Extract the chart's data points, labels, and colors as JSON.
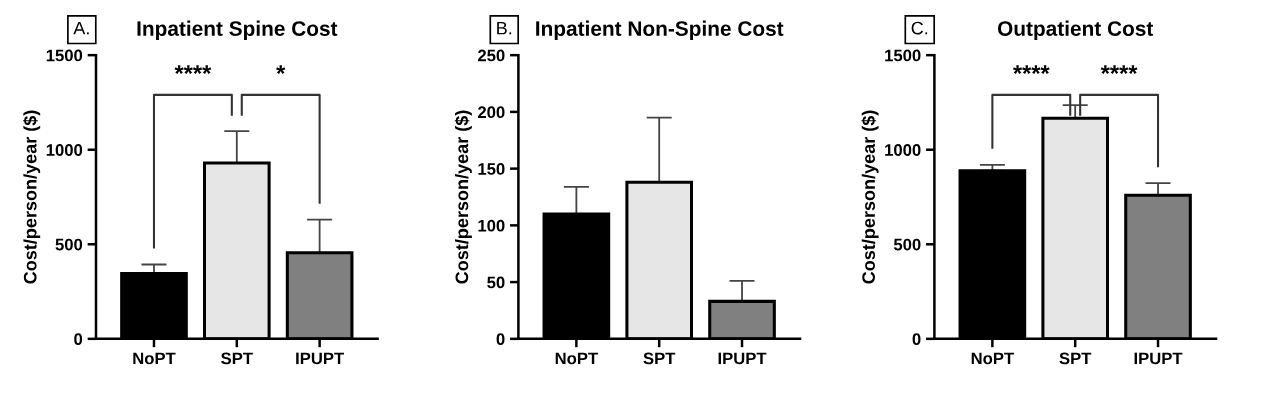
{
  "chart_data": [
    {
      "type": "bar",
      "title": "Inpatient Spine Cost",
      "ylabel": "Cost/person/year ($)",
      "categories": [
        "NoPT",
        "SPT",
        "IPUPT"
      ],
      "values": [
        345,
        930,
        455
      ],
      "errors": [
        [
          345,
          393
        ],
        [
          930,
          1098
        ],
        [
          455,
          630
        ]
      ],
      "colors": [
        "#000000",
        "#e6e6e6",
        "#808080"
      ],
      "ylim": [
        0,
        1500
      ],
      "yticks": [
        0,
        500,
        1000,
        1500
      ],
      "annotations": [
        "A.",
        "****",
        "*"
      ]
    },
    {
      "type": "bar",
      "title": "Inpatient Non-Spine Cost",
      "ylabel": "Cost/person/year ($)",
      "categories": [
        "NoPT",
        "SPT",
        "IPUPT"
      ],
      "values": [
        110,
        138,
        33
      ],
      "errors": [
        [
          110,
          134
        ],
        [
          138,
          195
        ],
        [
          33,
          51
        ]
      ],
      "colors": [
        "#000000",
        "#e6e6e6",
        "#808080"
      ],
      "ylim": [
        0,
        250
      ],
      "yticks": [
        0,
        50,
        100,
        150,
        200,
        250
      ],
      "annotations": [
        "B."
      ]
    },
    {
      "type": "bar",
      "title": "Outpatient Cost",
      "ylabel": "Cost/person/year ($)",
      "categories": [
        "NoPT",
        "SPT",
        "IPUPT"
      ],
      "values": [
        889,
        1166,
        759
      ],
      "errors": [
        [
          889,
          920
        ],
        [
          1166,
          1236
        ],
        [
          759,
          823
        ]
      ],
      "colors": [
        "#000000",
        "#e6e6e6",
        "#808080"
      ],
      "ylim": [
        0,
        1500
      ],
      "yticks": [
        0,
        500,
        1000,
        1500
      ],
      "annotations": [
        "C.",
        "****",
        "****"
      ]
    }
  ]
}
